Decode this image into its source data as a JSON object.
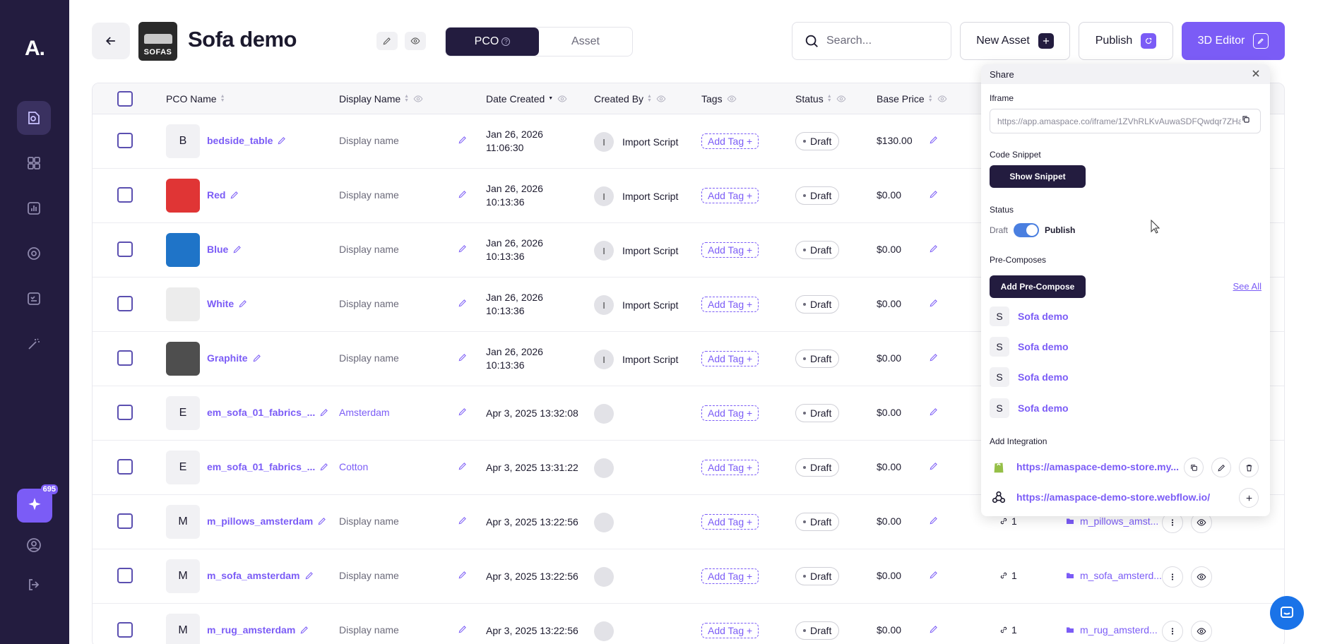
{
  "sidebar": {
    "logo": "A.",
    "promo_badge": "695"
  },
  "header": {
    "thumb_label": "SOFAS",
    "title": "Sofa demo",
    "tabs": [
      {
        "label": "PCO",
        "active": true
      },
      {
        "label": "Asset",
        "active": false
      }
    ],
    "search_placeholder": "Search...",
    "new_asset_label": "New Asset",
    "publish_label": "Publish",
    "editor_label": "3D Editor"
  },
  "table": {
    "columns": {
      "pco_name": "PCO Name",
      "display_name": "Display Name",
      "date_created": "Date Created",
      "created_by": "Created By",
      "tags": "Tags",
      "status": "Status",
      "base_price": "Base Price"
    },
    "rows": [
      {
        "avatar": "B",
        "name": "bedside_table",
        "display": "Display name",
        "date1": "Jan 26, 2026",
        "date2": "11:06:30",
        "creator": "Import Script",
        "creator_initial": "I",
        "tag": "Add Tag +",
        "status": "Draft",
        "price": "$130.00"
      },
      {
        "avatar": "",
        "swatch": "#e03535",
        "name": "Red",
        "display": "Display name",
        "date1": "Jan 26, 2026",
        "date2": "10:13:36",
        "creator": "Import Script",
        "creator_initial": "I",
        "tag": "Add Tag +",
        "status": "Draft",
        "price": "$0.00"
      },
      {
        "avatar": "",
        "swatch": "#1f74c8",
        "name": "Blue",
        "display": "Display name",
        "date1": "Jan 26, 2026",
        "date2": "10:13:36",
        "creator": "Import Script",
        "creator_initial": "I",
        "tag": "Add Tag +",
        "status": "Draft",
        "price": "$0.00"
      },
      {
        "avatar": "",
        "swatch": "#ececec",
        "name": "White",
        "display": "Display name",
        "date1": "Jan 26, 2026",
        "date2": "10:13:36",
        "creator": "Import Script",
        "creator_initial": "I",
        "tag": "Add Tag +",
        "status": "Draft",
        "price": "$0.00"
      },
      {
        "avatar": "",
        "swatch": "#4e4e4e",
        "name": "Graphite",
        "display": "Display name",
        "date1": "Jan 26, 2026",
        "date2": "10:13:36",
        "creator": "Import Script",
        "creator_initial": "I",
        "tag": "Add Tag +",
        "status": "Draft",
        "price": "$0.00"
      },
      {
        "avatar": "E",
        "name": "em_sofa_01_fabrics_...",
        "display": "Amsterdam",
        "display_filled": true,
        "date1": "Apr 3, 2025 13:32:08",
        "date2": "",
        "creator": "",
        "creator_initial": "",
        "tag": "Add Tag +",
        "status": "Draft",
        "price": "$0.00"
      },
      {
        "avatar": "E",
        "name": "em_sofa_01_fabrics_...",
        "display": "Cotton",
        "display_filled": true,
        "date1": "Apr 3, 2025 13:31:22",
        "date2": "",
        "creator": "",
        "creator_initial": "",
        "tag": "Add Tag +",
        "status": "Draft",
        "price": "$0.00"
      },
      {
        "avatar": "M",
        "name": "m_pillows_amsterdam",
        "display": "Display name",
        "date1": "Apr 3, 2025 13:22:56",
        "date2": "",
        "creator": "",
        "creator_initial": "",
        "tag": "Add Tag +",
        "status": "Draft",
        "price": "$0.00",
        "links": "1",
        "folder": "m_pillows_amst..."
      },
      {
        "avatar": "M",
        "name": "m_sofa_amsterdam",
        "display": "Display name",
        "date1": "Apr 3, 2025 13:22:56",
        "date2": "",
        "creator": "",
        "creator_initial": "",
        "tag": "Add Tag +",
        "status": "Draft",
        "price": "$0.00",
        "links": "1",
        "folder": "m_sofa_amsterd..."
      },
      {
        "avatar": "M",
        "name": "m_rug_amsterdam",
        "display": "Display name",
        "date1": "Apr 3, 2025 13:22:56",
        "date2": "",
        "creator": "",
        "creator_initial": "",
        "tag": "Add Tag +",
        "status": "Draft",
        "price": "$0.00",
        "links": "1",
        "folder": "m_rug_amsterd..."
      }
    ]
  },
  "share": {
    "title": "Share",
    "iframe_label": "Iframe",
    "iframe_url": "https://app.amaspace.co/iframe/1ZVhRLKvAuwaSDFQwdqr7ZHa...",
    "snippet_label": "Code Snippet",
    "show_snippet": "Show Snippet",
    "status_label": "Status",
    "status_off": "Draft",
    "status_on": "Publish",
    "precompose_label": "Pre-Composes",
    "add_precompose": "Add Pre-Compose",
    "see_all": "See All",
    "precomposes": [
      {
        "initial": "S",
        "name": "Sofa demo"
      },
      {
        "initial": "S",
        "name": "Sofa demo"
      },
      {
        "initial": "S",
        "name": "Sofa demo"
      },
      {
        "initial": "S",
        "name": "Sofa demo"
      }
    ],
    "integration_label": "Add Integration",
    "integrations": [
      {
        "url": "https://amaspace-demo-store.my...",
        "icon": "shopify-icon"
      },
      {
        "url": "https://amaspace-demo-store.webflow.io/",
        "icon": "webflow-icon"
      }
    ]
  }
}
